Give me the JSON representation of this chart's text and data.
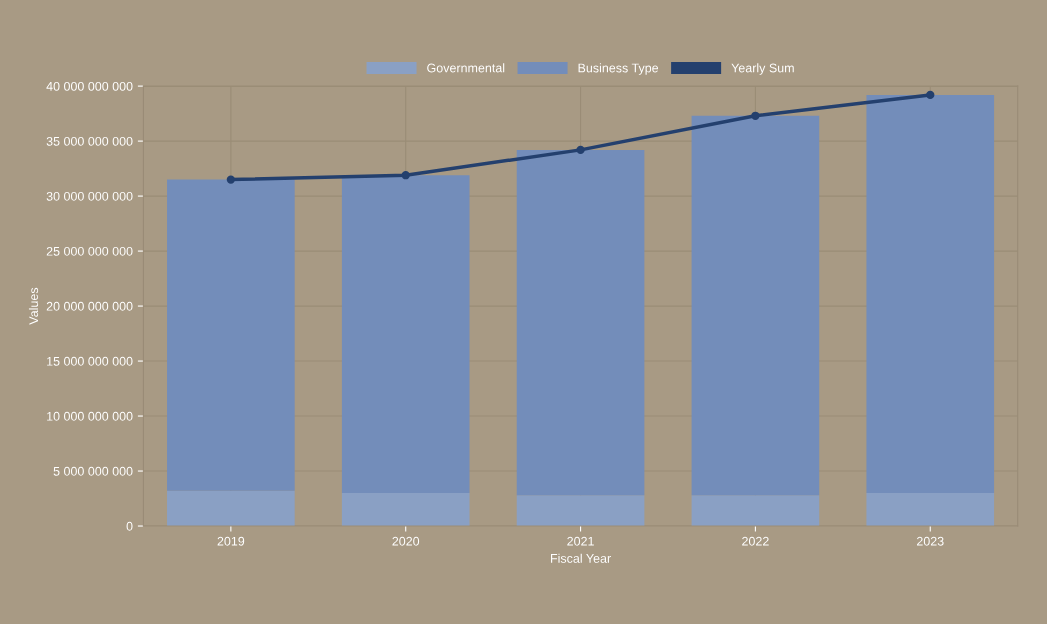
{
  "chart_data": {
    "type": "bar",
    "stacked": true,
    "xlabel": "Fiscal Year",
    "ylabel": "Values",
    "categories": [
      "2019",
      "2020",
      "2021",
      "2022",
      "2023"
    ],
    "series": [
      {
        "name": "Governmental",
        "color": "#8aa0c4",
        "values": [
          3200000000,
          3000000000,
          2800000000,
          2800000000,
          3000000000
        ]
      },
      {
        "name": "Business Type",
        "color": "#738dba",
        "values": [
          28300000000,
          28900000000,
          31400000000,
          34500000000,
          36200000000
        ]
      },
      {
        "name": "Yearly Sum",
        "type": "line",
        "color": "#24406e",
        "marker": "circle",
        "values": [
          31500000000,
          31900000000,
          34200000000,
          37300000000,
          39200000000
        ]
      }
    ],
    "ylim": [
      0,
      40000000000
    ],
    "yticks": [
      {
        "value": 0,
        "label": "0"
      },
      {
        "value": 5000000000,
        "label": "5 000 000 000"
      },
      {
        "value": 10000000000,
        "label": "10 000 000 000"
      },
      {
        "value": 15000000000,
        "label": "15 000 000 000"
      },
      {
        "value": 20000000000,
        "label": "20 000 000 000"
      },
      {
        "value": 25000000000,
        "label": "25 000 000 000"
      },
      {
        "value": 30000000000,
        "label": "30 000 000 000"
      },
      {
        "value": 35000000000,
        "label": "35 000 000 000"
      },
      {
        "value": 40000000000,
        "label": "40 000 000 000"
      }
    ],
    "grid": true,
    "legend": "top"
  }
}
